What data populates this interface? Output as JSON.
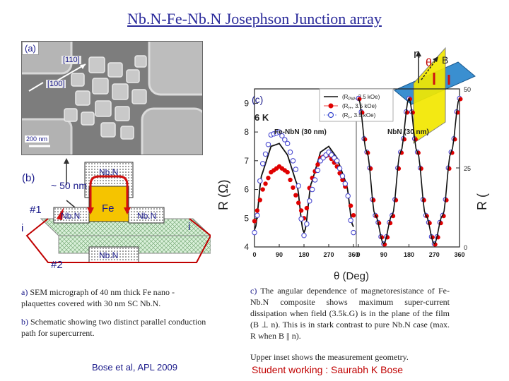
{
  "title": "Nb.N-Fe-Nb.N Josephson Junction array",
  "panel_a": {
    "label": "(a)",
    "dir_110": "[110]",
    "dir_100": "[100]",
    "scale": "200 nm"
  },
  "panel_b": {
    "label": "(b)",
    "thickness": "~ 50 nm",
    "nbn_top": "Nb.N",
    "fe": "Fe",
    "nbn_left": "Nb.N",
    "nbn_right": "Nb.N",
    "nbn_bottom": "Nb.N",
    "path1": "#1",
    "path2": "#2",
    "current_left": "i",
    "current_right": "i"
  },
  "geometry_inset": {
    "n": "n",
    "theta": "θ",
    "b": "B"
  },
  "chart_data": {
    "type": "scatter",
    "panel_label": "(c)",
    "field_label": "6 K",
    "left_panel": "Fe-NbN (30 nm)",
    "right_panel": "NbN (30 nm)",
    "ylabel_left": "R (Ω)",
    "ylabel_right": "R (",
    "xlabel": "θ (Deg)",
    "xticks": [
      "0",
      "90",
      "180",
      "270",
      "360",
      "0",
      "90",
      "180",
      "270",
      "360"
    ],
    "yticks_left": [
      "4",
      "5",
      "6",
      "7",
      "8",
      "9"
    ],
    "yticks_right": [
      "0",
      "25",
      "50"
    ],
    "ylim_left": [
      4,
      9.5
    ],
    "ylim_right": [
      0,
      50
    ],
    "legend": [
      {
        "text": "(R",
        "sub": "PW",
        "tail": ", 3.5 kOe)",
        "style": "line"
      },
      {
        "text": "(R",
        "sub": "I+",
        "tail": ", 3.5 kOe)",
        "style": "filled"
      },
      {
        "text": "(R",
        "sub": "I-",
        "tail": ", 3.5 kOe)",
        "style": "open"
      }
    ],
    "series": [
      {
        "x": [
          0,
          30,
          60,
          90,
          120,
          150,
          180,
          210,
          240,
          270,
          300,
          330,
          360
        ],
        "y": [
          4.6,
          6.6,
          7.5,
          7.6,
          7.2,
          6.3,
          4.5,
          6.3,
          7.3,
          7.5,
          7.1,
          6.3,
          4.7
        ]
      },
      {
        "x": [
          0,
          30,
          60,
          90,
          120,
          150,
          180,
          210,
          240,
          270,
          300,
          330,
          360
        ],
        "y": [
          4.9,
          6.0,
          6.6,
          6.8,
          6.6,
          5.8,
          5.0,
          6.4,
          7.1,
          7.2,
          6.8,
          6.1,
          5.1
        ]
      },
      {
        "x": [
          0,
          30,
          60,
          90,
          120,
          150,
          180,
          210,
          240,
          270,
          300,
          330,
          360
        ],
        "y": [
          4.5,
          6.9,
          7.9,
          8.0,
          7.6,
          6.7,
          4.4,
          6.0,
          7.0,
          7.3,
          7.0,
          6.2,
          4.5
        ]
      },
      {
        "x": [
          0,
          30,
          60,
          90,
          120,
          150,
          180,
          210,
          240,
          270,
          300,
          330,
          360
        ],
        "y": [
          47,
          30,
          10,
          1,
          10,
          30,
          47,
          30,
          10,
          1,
          10,
          30,
          47
        ]
      }
    ]
  },
  "caption_a_prefix": "a)",
  "caption_a": "SEM micrograph of 40 nm thick Fe nano -plaquettes covered with 30 nm SC Nb.N.",
  "caption_b_prefix": "b)",
  "caption_b": "Schematic showing two distinct parallel conduction path for supercurrent.",
  "caption_c_prefix": "c)",
  "caption_c": "The angular dependence of magnetoresistance of Fe-Nb.N composite shows maximum super-current dissipation when field (3.5k.G) is in the plane of the film (B ⊥ n). This is in stark contrast to pure Nb.N case (max. R when B || n).",
  "caption_inset": "Upper inset shows the measurement geometry.",
  "credit_left": "Bose et al, APL 2009",
  "credit_right": "Student working : Saurabh K Bose"
}
